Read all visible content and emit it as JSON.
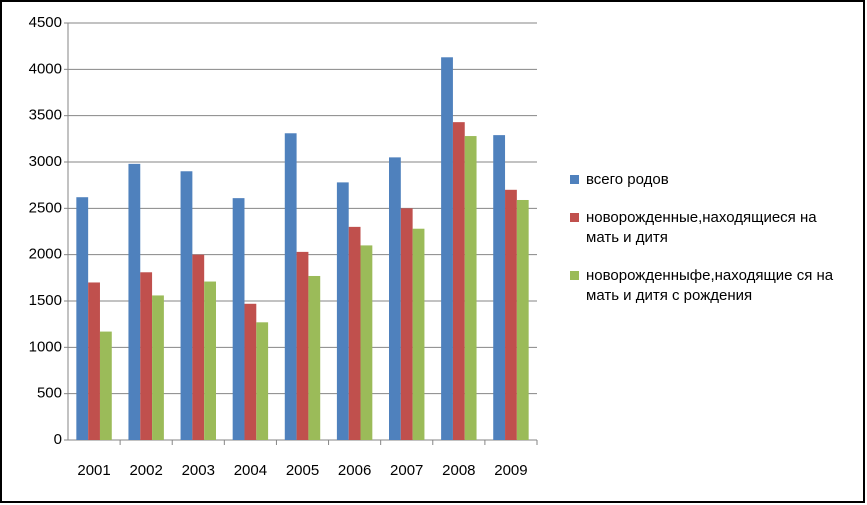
{
  "chart_data": {
    "type": "bar",
    "categories": [
      "2001",
      "2002",
      "2003",
      "2004",
      "2005",
      "2006",
      "2007",
      "2008",
      "2009"
    ],
    "series": [
      {
        "name": "всего родов",
        "color": "#4f81bd",
        "values": [
          2620,
          2980,
          2900,
          2610,
          3310,
          2780,
          3050,
          4130,
          3290
        ]
      },
      {
        "name": "новорожденные,находящиеся на мать и дитя",
        "color": "#c0504d",
        "values": [
          1700,
          1810,
          2000,
          1470,
          2030,
          2300,
          2500,
          3430,
          2700
        ]
      },
      {
        "name": "новорожденныфе,находящие ся на мать и дитя с рождения",
        "color": "#9bbb59",
        "values": [
          1170,
          1560,
          1710,
          1270,
          1770,
          2100,
          2280,
          3280,
          2590
        ]
      }
    ],
    "ylim": [
      0,
      4500
    ],
    "yticks": [
      0,
      500,
      1000,
      1500,
      2000,
      2500,
      3000,
      3500,
      4000,
      4500
    ],
    "grid": true,
    "legend": "right"
  }
}
